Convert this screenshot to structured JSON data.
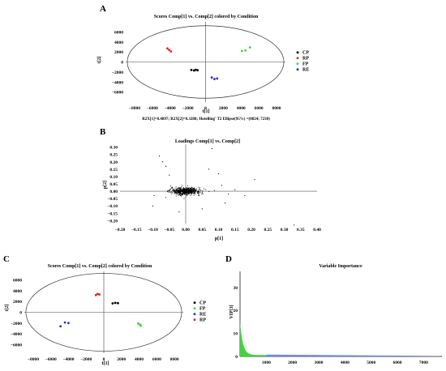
{
  "colors": {
    "CP": "#000000",
    "RP": "#e8231f",
    "FP": "#3dd63d",
    "RE": "#1f2fd6",
    "VIP": "#3dd63d",
    "VIP_tail": "#6f8ce0"
  },
  "chart_data": [
    {
      "panel": "A",
      "type": "scatter",
      "title": "Scores Comp[1] vs. Comp[2] colored by Condition",
      "xlabel": "t[1]",
      "ylabel": "t[2]",
      "xlim": [
        -9000,
        9000
      ],
      "ylim": [
        -8000,
        8000
      ],
      "xticks": [
        -8000,
        -6000,
        -4000,
        -2000,
        0,
        2000,
        4000,
        6000,
        8000
      ],
      "xtick_labels": [
        "−8000",
        "−6000",
        "−4000",
        "−2000",
        "0",
        "2000",
        "4000",
        "6000",
        "8000"
      ],
      "yticks": [
        6000,
        4000,
        2000,
        0,
        -2000,
        -4000,
        -6000
      ],
      "ytick_labels": [
        "6000",
        "4000",
        "2000",
        "0",
        "−2000",
        "−4000",
        "−6000"
      ],
      "ellipse": [
        8824,
        7230
      ],
      "caption": "R2X[1]=0.4897; R2X[2]=0.3288; Hotelling' T2 Ellipse(95%) =(8824; 7230)",
      "legend_position": "right",
      "series": [
        {
          "name": "CP",
          "x": [
            -1600,
            -1300,
            -1100,
            -900
          ],
          "y": [
            -1600,
            -1700,
            -1550,
            -1650
          ]
        },
        {
          "name": "RP",
          "x": [
            -4300,
            -4100,
            -3900
          ],
          "y": [
            2700,
            2400,
            2100
          ]
        },
        {
          "name": "FP",
          "x": [
            4100,
            4500,
            5000
          ],
          "y": [
            2200,
            2300,
            2900
          ]
        },
        {
          "name": "RE",
          "x": [
            700,
            1000,
            1300
          ],
          "y": [
            -3100,
            -3400,
            -3300
          ]
        }
      ]
    },
    {
      "panel": "B",
      "type": "scatter",
      "title": "Loadings Comp[1] vs. Comp[2]",
      "xlabel": "p[1]",
      "ylabel": "p[2]",
      "xlim": [
        -0.2,
        0.4
      ],
      "ylim": [
        -0.22,
        0.32
      ],
      "xticks": [
        -0.2,
        -0.15,
        -0.1,
        -0.05,
        0,
        0.05,
        0.1,
        0.15,
        0.2,
        0.25,
        0.3,
        0.35,
        0.4
      ],
      "xtick_labels": [
        "−0.20",
        "−0.15",
        "−0.10",
        "−0.05",
        "0.00",
        "0.05",
        "0.10",
        "0.15",
        "0.20",
        "0.25",
        "0.30",
        "0.35",
        "0.40"
      ],
      "yticks": [
        0.3,
        0.25,
        0.2,
        0.15,
        0.1,
        0.05,
        0,
        -0.05,
        -0.1,
        -0.15,
        -0.2
      ],
      "ytick_labels": [
        "0.30",
        "0.25",
        "0.20",
        "0.15",
        "0.10",
        "0.05",
        "0.00",
        "−0.05",
        "−0.10",
        "−0.15",
        "−0.20"
      ],
      "cluster": {
        "n": 600,
        "x_center": 0.0,
        "y_center": 0.0,
        "x_spread": 0.05,
        "y_spread": 0.035
      },
      "outliers": {
        "x": [
          -0.08,
          -0.07,
          -0.06,
          0.08,
          0.1,
          0.12,
          0.15,
          0.21,
          0.33,
          -0.1,
          0.05,
          0.07,
          -0.02,
          0.18,
          0.11,
          -0.05,
          0.13
        ],
        "y": [
          0.24,
          0.2,
          0.17,
          0.29,
          0.12,
          -0.08,
          0.01,
          0.08,
          -0.23,
          -0.1,
          -0.12,
          0.15,
          -0.14,
          -0.03,
          0.04,
          0.11,
          -0.02
        ]
      }
    },
    {
      "panel": "C",
      "type": "scatter",
      "title": "Scores Comp[1] vs. Comp[2] colored by Condition",
      "xlabel": "t[1]",
      "ylabel": "t[2]",
      "xlim": [
        -9000,
        9000
      ],
      "ylim": [
        -7600,
        7600
      ],
      "xticks": [
        -8000,
        -6000,
        -4000,
        -2000,
        0,
        2000,
        4000,
        6000,
        8000
      ],
      "xtick_labels": [
        "−8000",
        "−6000",
        "−4000",
        "−2000",
        "0",
        "2000",
        "4000",
        "6000",
        "8000"
      ],
      "yticks": [
        6000,
        4000,
        2000,
        0,
        -2000,
        -4000,
        -6000
      ],
      "ytick_labels": [
        "6000",
        "4000",
        "2000",
        "0",
        "−2000",
        "−4000",
        "−6000"
      ],
      "ellipse": [
        8824,
        7230
      ],
      "legend_position": "right",
      "series": [
        {
          "name": "CP",
          "x": [
            1000,
            1300,
            1600
          ],
          "y": [
            1650,
            1750,
            1700
          ]
        },
        {
          "name": "FP",
          "x": [
            3900,
            4100,
            4200
          ],
          "y": [
            -2100,
            -2300,
            -2500
          ]
        },
        {
          "name": "RE",
          "x": [
            -4900,
            -4400,
            -4000
          ],
          "y": [
            -2600,
            -1900,
            -2000
          ]
        },
        {
          "name": "RP",
          "x": [
            -900,
            -700,
            -500
          ],
          "y": [
            3200,
            3400,
            3300
          ]
        }
      ]
    },
    {
      "panel": "D",
      "type": "bar",
      "title": "Variable Importance",
      "xlabel": "",
      "ylabel": "VIP[3]",
      "xlim": [
        0,
        7700
      ],
      "ylim": [
        0,
        37
      ],
      "xticks": [
        1000,
        2000,
        3000,
        4000,
        5000,
        6000,
        7000
      ],
      "xtick_labels": [
        "1000",
        "2000",
        "3000",
        "4000",
        "5000",
        "6000",
        "7000"
      ],
      "yticks": [
        0,
        10,
        20,
        30
      ],
      "ytick_labels": [
        "0",
        "10",
        "20",
        "30"
      ],
      "profile": {
        "peak": 15,
        "green_end": 1000,
        "n_vars": 7600,
        "tail_value": 0.6
      }
    }
  ],
  "panels": {
    "A": "A",
    "B": "B",
    "C": "C",
    "D": "D"
  }
}
